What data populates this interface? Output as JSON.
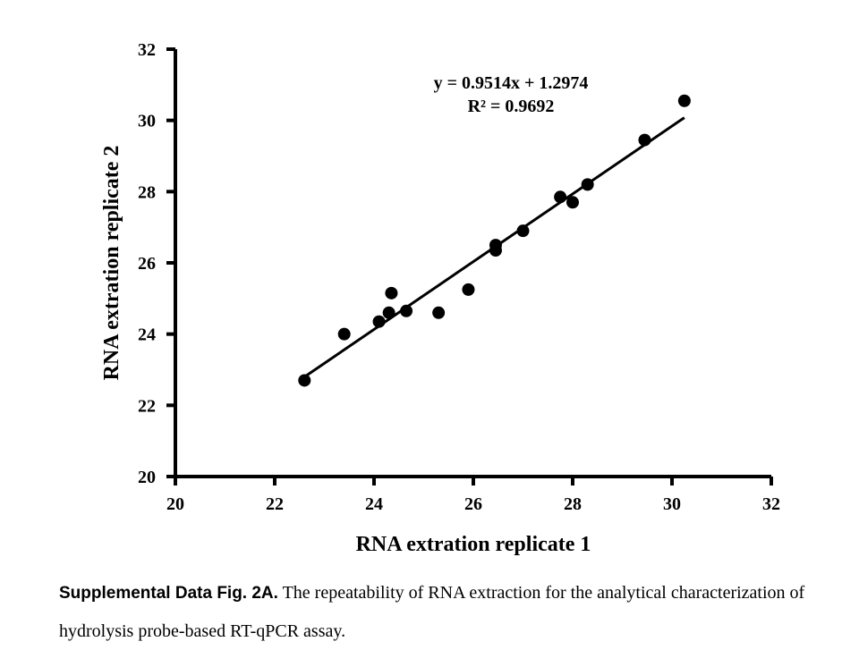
{
  "chart_data": {
    "type": "scatter",
    "xlabel": "RNA extration replicate 1",
    "ylabel": "RNA extration replicate 2",
    "xlim": [
      20,
      32
    ],
    "ylim": [
      20,
      32
    ],
    "xticks": [
      20,
      22,
      24,
      26,
      28,
      30,
      32
    ],
    "yticks": [
      20,
      22,
      24,
      26,
      28,
      30,
      32
    ],
    "grid": false,
    "points": [
      {
        "x": 22.6,
        "y": 22.7
      },
      {
        "x": 23.4,
        "y": 24.0
      },
      {
        "x": 24.1,
        "y": 24.35
      },
      {
        "x": 24.3,
        "y": 24.6
      },
      {
        "x": 24.35,
        "y": 25.15
      },
      {
        "x": 24.65,
        "y": 24.65
      },
      {
        "x": 25.3,
        "y": 24.6
      },
      {
        "x": 25.9,
        "y": 25.25
      },
      {
        "x": 26.45,
        "y": 26.35
      },
      {
        "x": 26.45,
        "y": 26.5
      },
      {
        "x": 27.0,
        "y": 26.9
      },
      {
        "x": 27.75,
        "y": 27.85
      },
      {
        "x": 28.0,
        "y": 27.7
      },
      {
        "x": 28.3,
        "y": 28.2
      },
      {
        "x": 29.45,
        "y": 29.45
      },
      {
        "x": 30.25,
        "y": 30.55
      }
    ],
    "trendline": {
      "slope": 0.9514,
      "intercept": 1.2974,
      "x_range": [
        22.6,
        30.25
      ],
      "equation": "y = 0.9514x + 1.2974",
      "r_squared": "R² = 0.9692"
    },
    "marker_color": "#000000",
    "line_color": "#000000"
  },
  "caption": {
    "bold": "Supplemental Data Fig. 2A.",
    "text": " The repeatability of RNA extraction for the analytical characterization of hydrolysis probe-based RT-qPCR assay."
  }
}
